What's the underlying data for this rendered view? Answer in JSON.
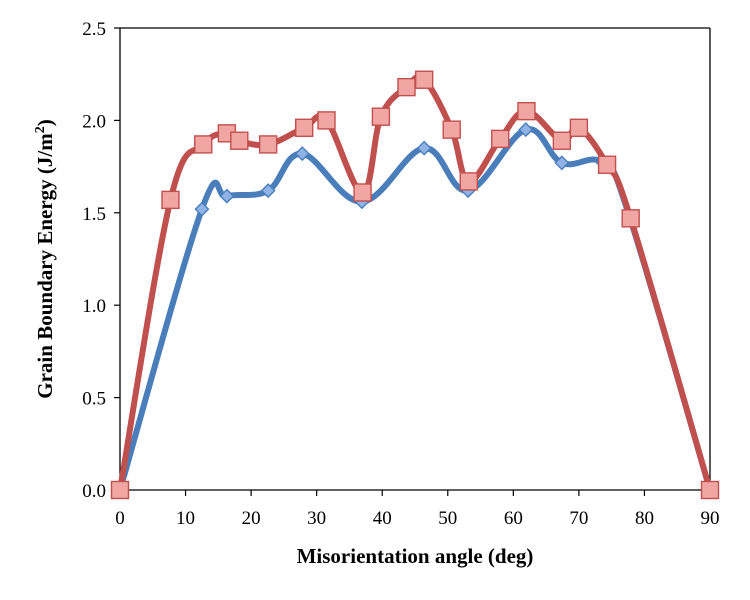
{
  "chart_data": {
    "type": "line",
    "title": "",
    "xlabel": "Misorientation angle (deg)",
    "ylabel_main": "Grain Boundary Energy (J/m",
    "ylabel_sup": "2",
    "ylabel_close": ")",
    "xlim": [
      0,
      90
    ],
    "ylim": [
      0,
      2.5
    ],
    "x_ticks": [
      "0",
      "10",
      "20",
      "30",
      "40",
      "50",
      "60",
      "70",
      "80",
      "90"
    ],
    "y_ticks": [
      "0.0",
      "0.5",
      "1.0",
      "1.5",
      "2.0",
      "2.5"
    ],
    "grid": false,
    "legend": "none",
    "smooth": true,
    "series": [
      {
        "color": "#4a7ebb",
        "marker_fill": "#8fb3e6",
        "marker": "diamond",
        "points": [
          [
            0,
            0.0
          ],
          [
            12.5,
            1.52
          ],
          [
            16.3,
            1.59
          ],
          [
            22.6,
            1.62
          ],
          [
            27.8,
            1.82
          ],
          [
            36.9,
            1.56
          ],
          [
            46.4,
            1.85
          ],
          [
            53.1,
            1.62
          ],
          [
            61.9,
            1.95
          ],
          [
            67.4,
            1.77
          ],
          [
            73.7,
            1.77
          ],
          [
            77.8,
            1.47
          ],
          [
            90,
            0.0
          ]
        ]
      },
      {
        "color": "#c0504d",
        "marker_fill": "#f2a6a4",
        "marker": "square",
        "points": [
          [
            0,
            0.0
          ],
          [
            7.7,
            1.57
          ],
          [
            12.7,
            1.87
          ],
          [
            16.3,
            1.93
          ],
          [
            18.2,
            1.89
          ],
          [
            22.6,
            1.87
          ],
          [
            28.1,
            1.96
          ],
          [
            31.5,
            2.0
          ],
          [
            37.0,
            1.61
          ],
          [
            39.8,
            2.02
          ],
          [
            43.7,
            2.18
          ],
          [
            46.4,
            2.22
          ],
          [
            50.6,
            1.95
          ],
          [
            53.2,
            1.67
          ],
          [
            58.0,
            1.9
          ],
          [
            62.0,
            2.05
          ],
          [
            67.4,
            1.89
          ],
          [
            70.0,
            1.96
          ],
          [
            74.3,
            1.76
          ],
          [
            77.9,
            1.47
          ],
          [
            90,
            0.0
          ]
        ]
      }
    ]
  }
}
